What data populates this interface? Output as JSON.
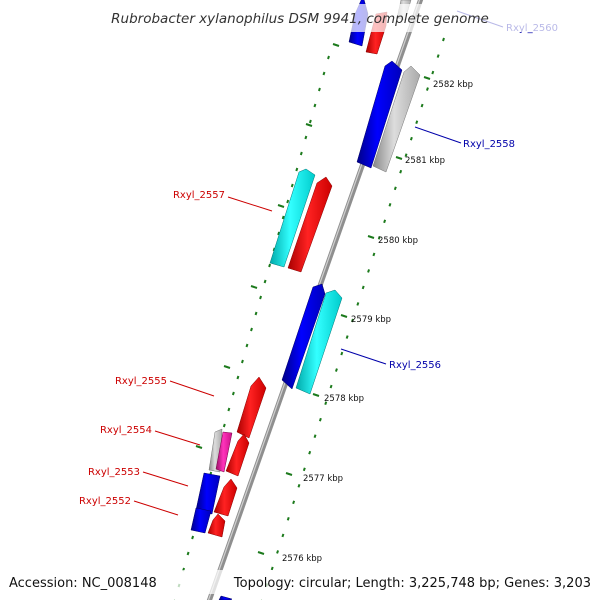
{
  "title": "Rubrobacter xylanophilus DSM 9941, complete genome",
  "footer": {
    "accession": "Accession: NC_008148",
    "topology": "Topology: circular; Length: 3,225,748 bp; Genes: 3,203"
  },
  "colors": {
    "backbone": "#8f8f8f",
    "tick": "#1c7a1c",
    "reverse_label": "#cc0000",
    "forward_label": "#0000aa",
    "blue": "#0000ee",
    "red": "#ff0000",
    "cyan": "#00eeee",
    "grey": "#bbbbbb",
    "magenta": "#dd1a9a"
  },
  "ticks": [
    {
      "label": "2582 kbp",
      "kbp": 2582
    },
    {
      "label": "2581 kbp",
      "kbp": 2581
    },
    {
      "label": "2580 kbp",
      "kbp": 2580
    },
    {
      "label": "2579 kbp",
      "kbp": 2579
    },
    {
      "label": "2578 kbp",
      "kbp": 2578
    },
    {
      "label": "2577 kbp",
      "kbp": 2577
    },
    {
      "label": "2576 kbp",
      "kbp": 2576
    }
  ],
  "gene_labels": [
    {
      "id": "label-rxyl-2560",
      "text": "Rxyl_2560",
      "strand": "forward"
    },
    {
      "id": "label-rxyl-2558",
      "text": "Rxyl_2558",
      "strand": "forward"
    },
    {
      "id": "label-rxyl-2557",
      "text": "Rxyl_2557",
      "strand": "reverse"
    },
    {
      "id": "label-rxyl-2556",
      "text": "Rxyl_2556",
      "strand": "forward"
    },
    {
      "id": "label-rxyl-2555",
      "text": "Rxyl_2555",
      "strand": "reverse"
    },
    {
      "id": "label-rxyl-2554",
      "text": "Rxyl_2554",
      "strand": "reverse"
    },
    {
      "id": "label-rxyl-2553",
      "text": "Rxyl_2553",
      "strand": "reverse"
    },
    {
      "id": "label-rxyl-2552",
      "text": "Rxyl_2552",
      "strand": "reverse"
    }
  ]
}
